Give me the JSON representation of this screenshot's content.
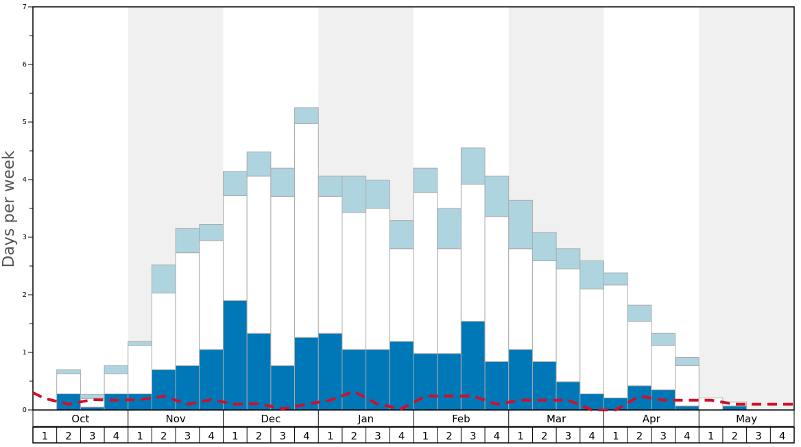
{
  "chart_data": {
    "type": "bar",
    "ylabel": "Days per week",
    "ylim": [
      0,
      7
    ],
    "y_ticks": [
      "0",
      "1",
      "2",
      "3",
      "4",
      "5",
      "6",
      "7"
    ],
    "months": [
      "Oct",
      "Nov",
      "Dec",
      "Jan",
      "Feb",
      "Mar",
      "Apr",
      "May"
    ],
    "weeks": [
      "1",
      "2",
      "3",
      "4"
    ],
    "stacked": true,
    "shaded_months": [
      "Nov",
      "Jan",
      "Mar",
      "May"
    ],
    "colors": {
      "dark_segment": "#0077b6",
      "white_segment": "#ffffff",
      "light_segment": "#aed4e0",
      "line": "#d0102a",
      "shade": "#f0f0f0",
      "bar_outline": "#aaaaaa"
    },
    "series": [
      {
        "values": [
          0,
          0.28,
          0.05,
          0.28,
          0.28,
          0.7,
          0.77,
          1.05,
          1.9,
          1.33,
          0.77,
          1.26,
          1.33,
          1.05,
          1.05,
          1.19,
          0.98,
          0.98,
          1.54,
          0.84,
          1.05,
          0.84,
          0.49,
          0.28,
          0.21,
          0.42,
          0.35,
          0.07,
          0,
          0.07,
          0,
          0
        ]
      },
      {
        "values": [
          0,
          0.35,
          0.15,
          0.35,
          0.84,
          1.33,
          1.96,
          1.89,
          1.82,
          2.73,
          2.94,
          3.71,
          2.38,
          2.38,
          2.45,
          1.61,
          2.8,
          1.82,
          2.38,
          2.52,
          1.75,
          1.75,
          1.96,
          1.82,
          1.96,
          1.12,
          0.77,
          0.7,
          0.21,
          0.07,
          0,
          0
        ]
      },
      {
        "values": [
          0,
          0.07,
          0.07,
          0.14,
          0.07,
          0.49,
          0.42,
          0.28,
          0.42,
          0.42,
          0.49,
          0.28,
          0.35,
          0.63,
          0.49,
          0.49,
          0.42,
          0.7,
          0.63,
          0.7,
          0.84,
          0.49,
          0.35,
          0.49,
          0.21,
          0.28,
          0.21,
          0.14,
          0,
          0,
          0,
          0
        ]
      },
      {
        "values": [
          0.3,
          0.2,
          0.1,
          0.18,
          0.17,
          0.18,
          0.24,
          0.1,
          0.18,
          0.1,
          0.11,
          0.02,
          0.1,
          0.17,
          0.32,
          0.1,
          0.02,
          0.24,
          0.24,
          0.24,
          0.1,
          0.17,
          0.17,
          0.17,
          0,
          0,
          0.24,
          0.17,
          0.17,
          0.17,
          0.1,
          0.1,
          0.1
        ]
      }
    ]
  }
}
